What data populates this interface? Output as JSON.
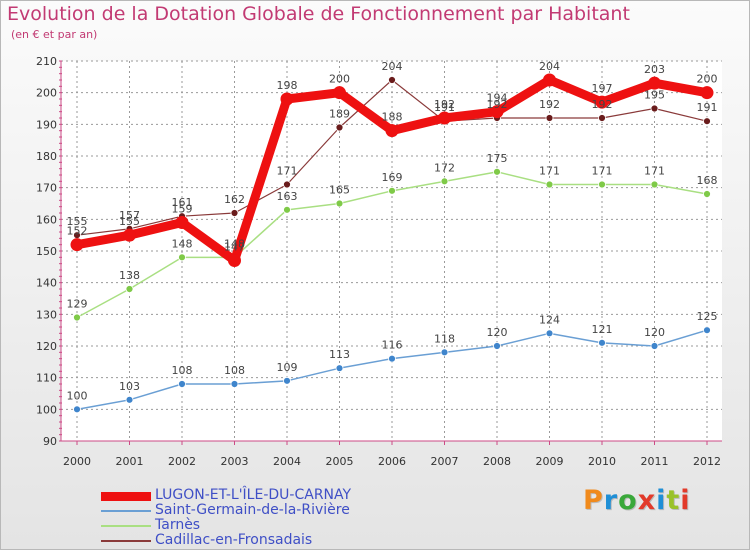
{
  "title": "Evolution de la Dotation Globale de Fonctionnement par Habitant",
  "subtitle": "(en € et par an)",
  "logo": {
    "text": "Proxiti",
    "colors": [
      "#f08a1c",
      "#1f8fd6",
      "#3aa83a",
      "#e23a2a",
      "#1f8fd6",
      "#9ac22a",
      "#e23a2a"
    ]
  },
  "chart_data": {
    "type": "line",
    "title": "Evolution de la Dotation Globale de Fonctionnement par Habitant",
    "subtitle": "(en € et par an)",
    "xlabel": "",
    "ylabel": "",
    "categories": [
      "2000",
      "2001",
      "2002",
      "2003",
      "2004",
      "2005",
      "2006",
      "2007",
      "2008",
      "2009",
      "2010",
      "2011",
      "2012"
    ],
    "ylim": [
      90,
      210
    ],
    "yticks": [
      90,
      100,
      110,
      120,
      130,
      140,
      150,
      160,
      170,
      180,
      190,
      200,
      210
    ],
    "grid": true,
    "legend_position": "bottom-left",
    "series": [
      {
        "name": "LUGON-ET-L'ÎLE-DU-CARNAY",
        "color": "#ee1111",
        "width": 9,
        "values": [
          152,
          155,
          159,
          147,
          198,
          200,
          188,
          192,
          194,
          204,
          197,
          203,
          200
        ]
      },
      {
        "name": "Saint-Germain-de-la-Rivière",
        "color": "#6a9fd4",
        "marker": "#3f85cc",
        "width": 1.5,
        "values": [
          100,
          103,
          108,
          108,
          109,
          113,
          116,
          118,
          120,
          124,
          121,
          120,
          125
        ]
      },
      {
        "name": "Tarnès",
        "color": "#a9df82",
        "marker": "#7fca48",
        "width": 1.5,
        "values": [
          129,
          138,
          148,
          148,
          163,
          165,
          169,
          172,
          175,
          171,
          171,
          171,
          168
        ]
      },
      {
        "name": "Cadillac-en-Fronsadais",
        "color": "#8a3a3a",
        "marker": "#6a1c1c",
        "width": 1.2,
        "values": [
          155,
          157,
          161,
          162,
          171,
          189,
          204,
          191,
          192,
          192,
          192,
          195,
          191
        ]
      }
    ]
  }
}
